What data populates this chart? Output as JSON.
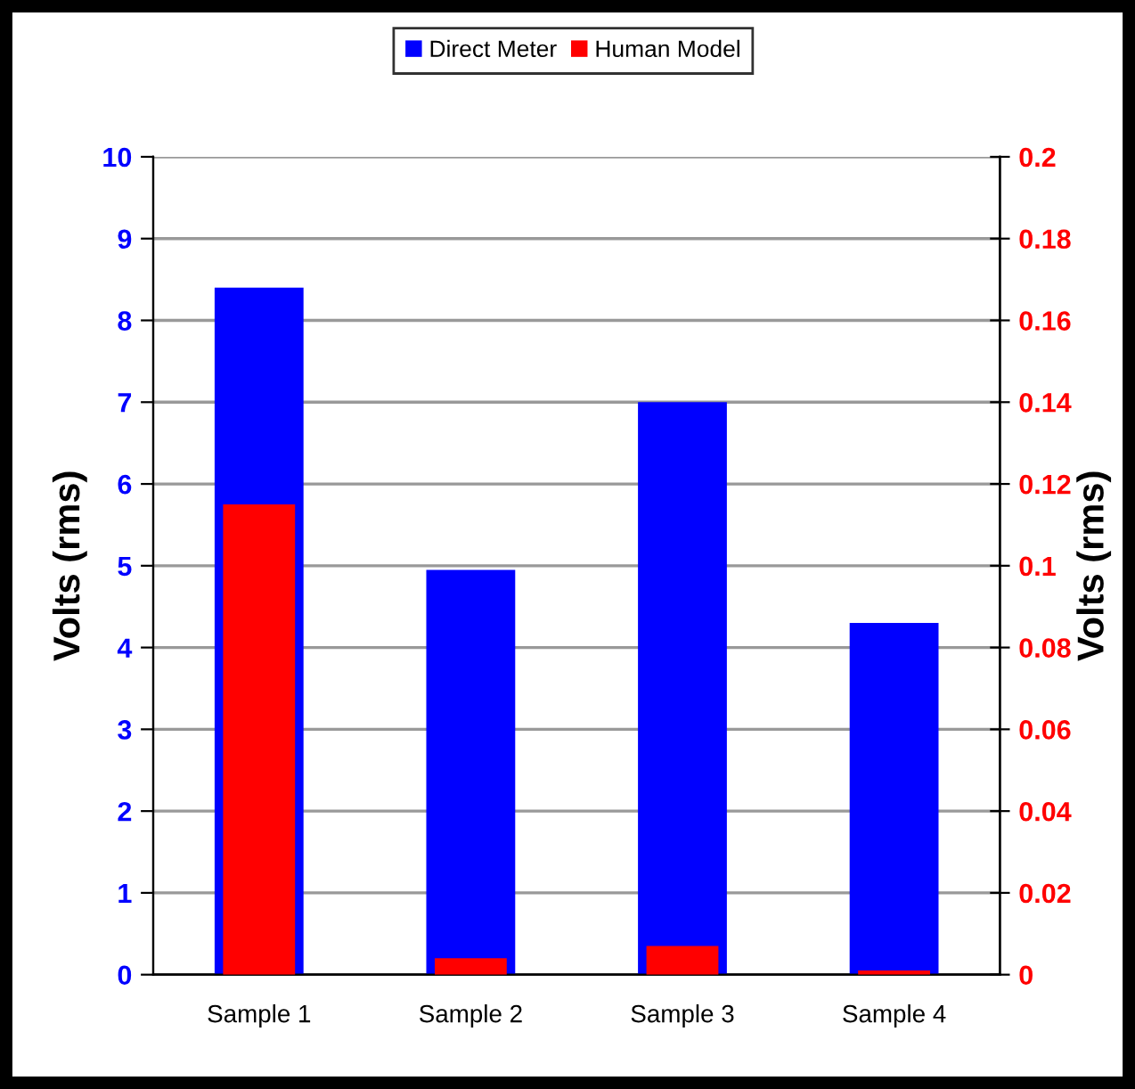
{
  "chart_data": {
    "type": "bar",
    "categories": [
      "Sample 1",
      "Sample 2",
      "Sample 3",
      "Sample 4"
    ],
    "series": [
      {
        "name": "Direct Meter",
        "color": "#0000ff",
        "values": [
          8.4,
          4.95,
          7.0,
          4.3
        ]
      },
      {
        "name": "Human Model",
        "color": "#ff0000",
        "values": [
          0.115,
          0.004,
          0.007,
          0.001
        ],
        "axis": "y2"
      }
    ],
    "ylabel": "Volts (rms)",
    "y2label": "Volts (rms)",
    "ylim": [
      0,
      10
    ],
    "yticks": [
      0,
      1,
      2,
      3,
      4,
      5,
      6,
      7,
      8,
      9,
      10
    ],
    "y2lim": [
      0,
      0.2
    ],
    "y2ticks": [
      0,
      0.02,
      0.04,
      0.06,
      0.08,
      0.1,
      0.12,
      0.14,
      0.16,
      0.18,
      0.2
    ],
    "grid": "y",
    "legend": "top"
  }
}
